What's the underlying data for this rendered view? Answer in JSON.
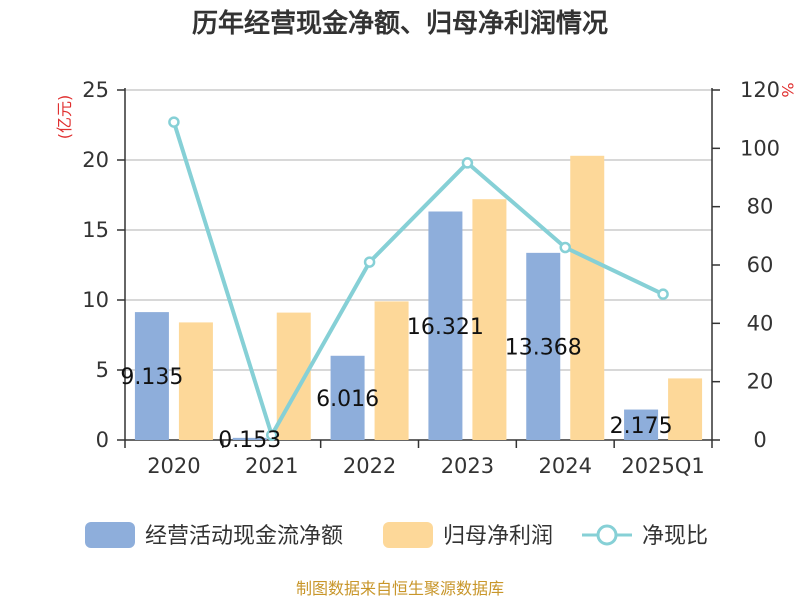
{
  "chart_data": {
    "type": "bar",
    "title": "历年经营现金净额、归母净利润情况",
    "categories": [
      "2020",
      "2021",
      "2022",
      "2023",
      "2024",
      "2025Q1"
    ],
    "series": [
      {
        "name": "经营活动现金流净额",
        "type": "bar",
        "axis": "left",
        "values": [
          9.135,
          0.153,
          6.016,
          16.321,
          13.368,
          2.175
        ],
        "labels": [
          "9.135",
          "0.153",
          "6.016",
          "16.321",
          "13.368",
          "2.175"
        ],
        "color": "#8eaedb"
      },
      {
        "name": "归母净利润",
        "type": "bar",
        "axis": "left",
        "values": [
          8.4,
          9.1,
          9.9,
          17.2,
          20.3,
          4.4
        ],
        "color": "#fdd899"
      },
      {
        "name": "净现比",
        "type": "line",
        "axis": "right",
        "values": [
          109,
          1.7,
          61,
          95,
          66,
          50
        ],
        "color": "#86d0d6"
      }
    ],
    "y_left": {
      "unit": "(亿元)",
      "min": 0,
      "max": 25,
      "ticks": [
        "0",
        "5",
        "10",
        "15",
        "20",
        "25"
      ]
    },
    "y_right": {
      "unit": "%",
      "min": 0,
      "max": 120,
      "ticks": [
        "0",
        "20",
        "40",
        "60",
        "80",
        "100",
        "120"
      ]
    },
    "grid": true,
    "legend_position": "bottom"
  },
  "source": "制图数据来自恒生聚源数据库"
}
